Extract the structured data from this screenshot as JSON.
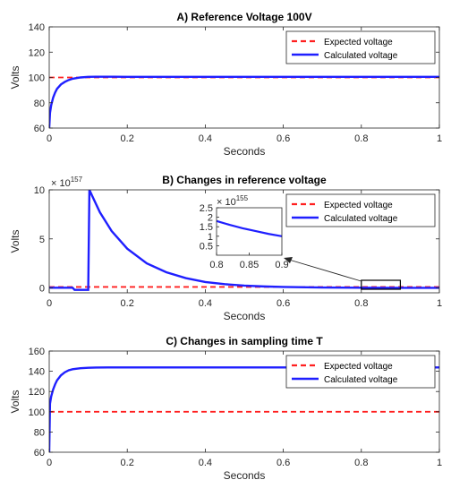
{
  "chart_data": [
    {
      "id": "A",
      "type": "line",
      "title": "A) Reference Voltage 100V",
      "xlabel": "Seconds",
      "ylabel": "Volts",
      "xlim": [
        0,
        1
      ],
      "ylim": [
        60,
        140
      ],
      "xticks": [
        "0",
        "0.2",
        "0.4",
        "0.6",
        "0.8",
        "1"
      ],
      "yticks": [
        "60",
        "80",
        "100",
        "120",
        "140"
      ],
      "legend_position": "top-right",
      "series": [
        {
          "name": "Expected voltage",
          "style": "dashed",
          "color": "#ff2020",
          "x": [
            0,
            1
          ],
          "y": [
            100,
            100
          ]
        },
        {
          "name": "Calculated voltage",
          "style": "solid",
          "color": "#1f1fff",
          "x": [
            0,
            0.002,
            0.005,
            0.01,
            0.015,
            0.02,
            0.03,
            0.04,
            0.05,
            0.06,
            0.08,
            0.1,
            0.12,
            0.15,
            0.2,
            0.3,
            0.5,
            0.7,
            1.0
          ],
          "y": [
            60,
            72,
            78,
            84,
            88,
            91,
            94.5,
            96.5,
            98,
            99,
            100,
            100.5,
            100.6,
            100.6,
            100.5,
            100.5,
            100.5,
            100.5,
            100.5
          ]
        }
      ]
    },
    {
      "id": "B",
      "type": "line",
      "title": "B) Changes in reference voltage",
      "xlabel": "Seconds",
      "ylabel": "Volts",
      "y_multiplier": "× 10157",
      "xlim": [
        0,
        1
      ],
      "ylim": [
        -0.5,
        10
      ],
      "xticks": [
        "0",
        "0.2",
        "0.4",
        "0.6",
        "0.8",
        "1"
      ],
      "yticks": [
        "0",
        "5",
        "10"
      ],
      "legend_position": "top-right",
      "series": [
        {
          "name": "Expected voltage",
          "style": "dashed",
          "color": "#ff2020",
          "x": [
            0,
            1
          ],
          "y": [
            0.1,
            0.1
          ]
        },
        {
          "name": "Calculated voltage",
          "style": "solid",
          "color": "#1f1fff",
          "x": [
            0,
            0.06,
            0.065,
            0.085,
            0.09,
            0.1,
            0.103,
            0.11,
            0.13,
            0.16,
            0.2,
            0.25,
            0.3,
            0.35,
            0.4,
            0.45,
            0.5,
            0.55,
            0.6,
            0.7,
            0.8,
            0.9,
            1.0
          ],
          "y": [
            0.02,
            0.02,
            -0.2,
            -0.2,
            -0.2,
            -0.2,
            10,
            9.4,
            7.7,
            5.8,
            4.0,
            2.5,
            1.6,
            1.0,
            0.6,
            0.38,
            0.24,
            0.15,
            0.1,
            0.04,
            0.02,
            0.01,
            0.01
          ]
        }
      ],
      "inset": {
        "y_multiplier": "× 10155",
        "xlim": [
          0.8,
          0.9
        ],
        "ylim": [
          0,
          2.5
        ],
        "xticks": [
          "0.8",
          "0.85",
          "0.9"
        ],
        "yticks": [
          "0.5",
          "1",
          "1.5",
          "2",
          "2.5"
        ],
        "x": [
          0.8,
          0.82,
          0.84,
          0.86,
          0.88,
          0.9
        ],
        "y": [
          1.8,
          1.6,
          1.42,
          1.27,
          1.12,
          1.0
        ]
      }
    },
    {
      "id": "C",
      "type": "line",
      "title": "C) Changes in sampling time T",
      "xlabel": "Seconds",
      "ylabel": "Volts",
      "xlim": [
        0,
        1
      ],
      "ylim": [
        60,
        160
      ],
      "xticks": [
        "0",
        "0.2",
        "0.4",
        "0.6",
        "0.8",
        "1"
      ],
      "yticks": [
        "60",
        "80",
        "100",
        "120",
        "140",
        "160"
      ],
      "legend_position": "top-right",
      "series": [
        {
          "name": "Expected voltage",
          "style": "dashed",
          "color": "#ff2020",
          "x": [
            0,
            1
          ],
          "y": [
            100,
            100
          ]
        },
        {
          "name": "Calculated voltage",
          "style": "solid",
          "color": "#1f1fff",
          "x": [
            0,
            0.002,
            0.005,
            0.01,
            0.015,
            0.02,
            0.03,
            0.04,
            0.05,
            0.06,
            0.08,
            0.1,
            0.12,
            0.15,
            0.2,
            0.3,
            0.5,
            0.7,
            1.0
          ],
          "y": [
            60,
            108,
            115,
            122,
            127,
            131,
            136,
            139,
            141,
            142,
            143,
            143.5,
            143.7,
            143.8,
            143.8,
            143.8,
            143.8,
            143.8,
            143.8
          ]
        }
      ]
    }
  ]
}
